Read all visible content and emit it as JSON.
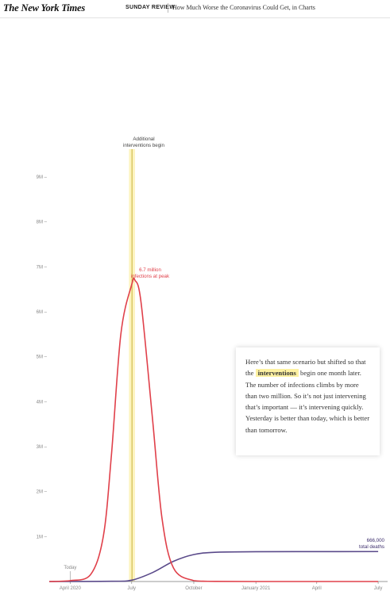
{
  "header": {
    "logo": "The New York Times",
    "section": "SUNDAY REVIEW",
    "headline": "How Much Worse the Coronavirus Could Get, in Charts"
  },
  "card": {
    "before": "Here’s that same scenario but shifted so that the",
    "highlight": "interventions",
    "after": "begin one month later. The number of infections climbs by more than two million. So it’s not just intervening that’s important — it’s intervening quickly. Yesterday is better than today, which is better than tomorrow."
  },
  "colors": {
    "infections": "#e0404a",
    "deaths": "#5a4a8a",
    "intervention_band": "#fdf4c0",
    "intervention_line": "#c9b23a"
  },
  "chart_data": {
    "type": "line",
    "title": "",
    "xlabel": "",
    "ylabel": "",
    "y_ticks": [
      "9M",
      "8M",
      "7M",
      "6M",
      "5M",
      "4M",
      "3M",
      "2M",
      "1M"
    ],
    "x_ticks": [
      "April 2020",
      "July",
      "October",
      "January 2021",
      "April",
      "July"
    ],
    "ylim": [
      0,
      9500000
    ],
    "x_range": [
      "2020-03",
      "2021-07"
    ],
    "series": [
      {
        "key": "infections",
        "x": [
          "2020-03-01",
          "2020-04-01",
          "2020-05-01",
          "2020-05-20",
          "2020-06-01",
          "2020-06-15",
          "2020-07-01",
          "2020-07-06",
          "2020-07-15",
          "2020-08-01",
          "2020-08-15",
          "2020-09-01",
          "2020-10-01",
          "2020-11-01",
          "2021-01-01",
          "2021-04-01",
          "2021-07-01"
        ],
        "values": [
          0,
          20000,
          150000,
          1000000,
          2800000,
          5500000,
          6600000,
          6700000,
          6200000,
          3600000,
          1400000,
          300000,
          20000,
          3000,
          0,
          0,
          0
        ]
      },
      {
        "key": "deaths",
        "x": [
          "2020-03-01",
          "2020-06-01",
          "2020-07-01",
          "2020-08-01",
          "2020-09-01",
          "2020-10-01",
          "2020-11-01",
          "2021-01-01",
          "2021-04-01",
          "2021-07-01"
        ],
        "values": [
          0,
          5000,
          30000,
          200000,
          450000,
          600000,
          650000,
          662000,
          665000,
          666000
        ]
      }
    ],
    "annotations": {
      "intervention": [
        "Additional",
        "interventions begin"
      ],
      "peak": [
        "6.7 million",
        "infections at peak"
      ],
      "deaths_total": [
        "666,000",
        "total deaths"
      ],
      "today": "Today"
    }
  }
}
